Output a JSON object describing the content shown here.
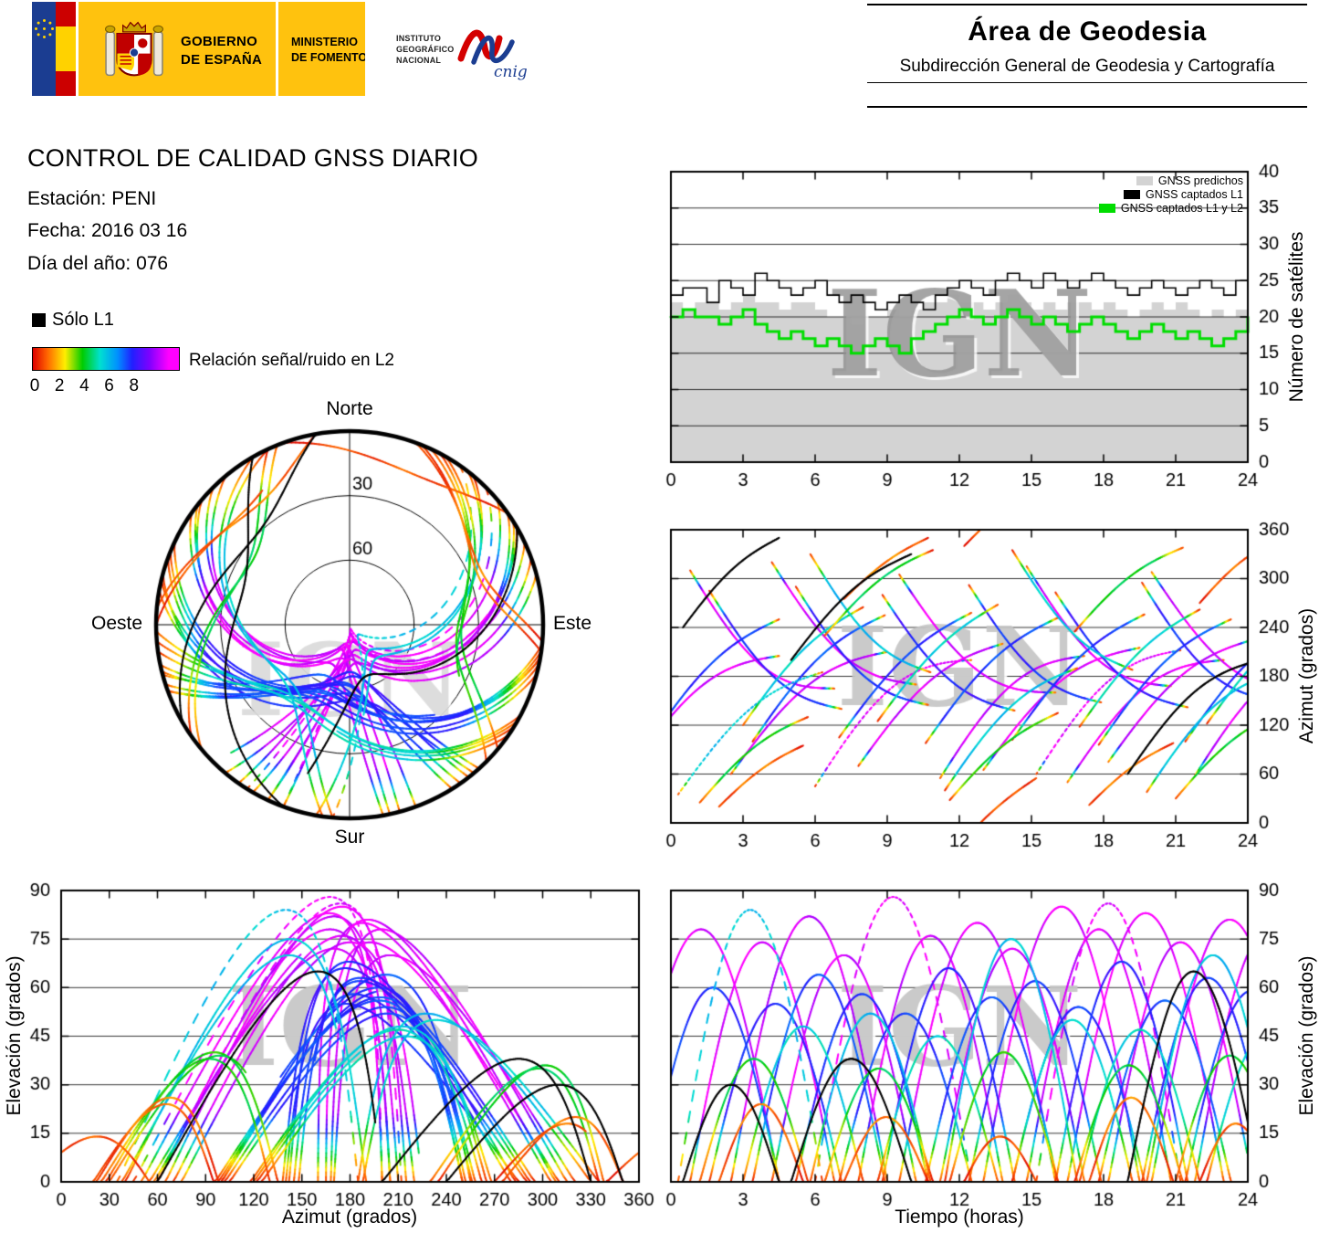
{
  "watermark": "IGN",
  "colors": {
    "eu_blue": "#1b3d91",
    "flag_red": "#cc0000",
    "flag_yellow": "#ffd200",
    "gov_yellow": "#ffc20e",
    "legend_green": "#00dd00",
    "legend_gray": "#d3d3d3"
  },
  "header": {
    "gobierno_line1": "GOBIERNO",
    "gobierno_line2": "DE ESPAÑA",
    "ministerio_line1": "MINISTERIO",
    "ministerio_line2": "DE FOMENTO",
    "ign_line1": "INSTITUTO",
    "ign_line2": "GEOGRÁFICO",
    "ign_line3": "NACIONAL",
    "cnig": "cnig",
    "area_title": "Área de Geodesia",
    "area_subtitle": "Subdirección General de Geodesia y Cartografía"
  },
  "info": {
    "title": "CONTROL DE CALIDAD GNSS DIARIO",
    "station_label": "Estación: PENI",
    "date_label": "Fecha: 2016 03 16",
    "doy_label": "Día del año: 076",
    "solo_l1": "Sólo L1",
    "colorbar_label": "Relación señal/ruido en L2",
    "colorbar_ticks": [
      0,
      2,
      4,
      6,
      8
    ]
  },
  "colorbar_stops": [
    {
      "p": 0.0,
      "c": "#dd0000"
    },
    {
      "p": 0.1,
      "c": "#ff6600"
    },
    {
      "p": 0.22,
      "c": "#ffee00"
    },
    {
      "p": 0.34,
      "c": "#00cc00"
    },
    {
      "p": 0.46,
      "c": "#00e0d0"
    },
    {
      "p": 0.58,
      "c": "#0090ff"
    },
    {
      "p": 0.68,
      "c": "#2020ff"
    },
    {
      "p": 0.8,
      "c": "#8000ff"
    },
    {
      "p": 0.93,
      "c": "#ff00ff"
    },
    {
      "p": 1.0,
      "c": "#ff00ff"
    }
  ],
  "skyplot": {
    "north": "Norte",
    "south": "Sur",
    "east": "Este",
    "west": "Oeste",
    "ring_labels": [
      "30",
      "60"
    ],
    "elevation_rings_deg": [
      30,
      60
    ]
  },
  "chart_data": [
    {
      "id": "satellite-count",
      "type": "line",
      "title": "",
      "xlabel": "",
      "ylabel": "Número de satélites",
      "xlim": [
        0,
        24
      ],
      "ylim": [
        0,
        40
      ],
      "xticks": [
        0,
        3,
        6,
        9,
        12,
        15,
        18,
        21,
        24
      ],
      "yticks": [
        0,
        5,
        10,
        15,
        20,
        25,
        30,
        35,
        40
      ],
      "x_step_hours": 0.5,
      "grid": "horizontal",
      "legend_position": "top-right",
      "series": [
        {
          "name": "GNSS predichos",
          "color": "#d3d3d3",
          "style": "area",
          "values": [
            22,
            21,
            22,
            22,
            21,
            22,
            23,
            22,
            22,
            21,
            22,
            22,
            21,
            20,
            20,
            19,
            20,
            20,
            21,
            20,
            21,
            22,
            22,
            23,
            22,
            22,
            21,
            22,
            23,
            22,
            21,
            22,
            21,
            22,
            22,
            21,
            22,
            21,
            20,
            21,
            22,
            21,
            22,
            21,
            20,
            21,
            20,
            21,
            21
          ]
        },
        {
          "name": "GNSS captados L1",
          "color": "#000000",
          "style": "step",
          "values": [
            23,
            24,
            24,
            22,
            25,
            24,
            23,
            26,
            25,
            24,
            23,
            24,
            25,
            23,
            22,
            23,
            22,
            21,
            22,
            23,
            22,
            21,
            23,
            24,
            25,
            24,
            23,
            25,
            26,
            25,
            24,
            26,
            25,
            24,
            25,
            26,
            25,
            24,
            23,
            24,
            25,
            24,
            23,
            24,
            25,
            24,
            23,
            25,
            24
          ]
        },
        {
          "name": "GNSS captados L1 y L2",
          "color": "#00dd00",
          "style": "step",
          "values": [
            20,
            21,
            20,
            20,
            19,
            20,
            21,
            19,
            18,
            17,
            18,
            17,
            16,
            17,
            16,
            15,
            16,
            17,
            16,
            15,
            17,
            18,
            19,
            20,
            21,
            20,
            19,
            20,
            21,
            20,
            19,
            20,
            19,
            18,
            19,
            20,
            19,
            18,
            17,
            18,
            19,
            18,
            17,
            18,
            17,
            16,
            17,
            18,
            20
          ]
        }
      ]
    },
    {
      "id": "azimuth-vs-time",
      "type": "line",
      "xlabel": "",
      "ylabel": "Azimut (grados)",
      "xlim": [
        0,
        24
      ],
      "ylim": [
        0,
        360
      ],
      "xticks": [
        0,
        3,
        6,
        9,
        12,
        15,
        18,
        21,
        24
      ],
      "yticks": [
        0,
        60,
        120,
        180,
        240,
        300,
        360
      ],
      "grid": "horizontal",
      "source": "satellite_passes",
      "x": "time",
      "y": "azimuth"
    },
    {
      "id": "elevation-vs-azimuth",
      "type": "line",
      "xlabel": "Azimut (grados)",
      "ylabel": "Elevación (grados)",
      "xlim": [
        0,
        360
      ],
      "ylim": [
        0,
        90
      ],
      "xticks": [
        0,
        30,
        60,
        90,
        120,
        150,
        180,
        210,
        240,
        270,
        300,
        330,
        360
      ],
      "yticks": [
        0,
        15,
        30,
        45,
        60,
        75,
        90
      ],
      "grid": "horizontal",
      "source": "satellite_passes",
      "x": "azimuth",
      "y": "elevation"
    },
    {
      "id": "elevation-vs-time",
      "type": "line",
      "xlabel": "Tiempo (horas)",
      "ylabel": "Elevación (grados)",
      "xlim": [
        0,
        24
      ],
      "ylim": [
        0,
        90
      ],
      "xticks": [
        0,
        3,
        6,
        9,
        12,
        15,
        18,
        21,
        24
      ],
      "yticks": [
        0,
        15,
        30,
        45,
        60,
        75,
        90
      ],
      "grid": "horizontal",
      "source": "satellite_passes",
      "x": "time",
      "y": "elevation"
    }
  ],
  "satellite_passes": {
    "format": [
      "t0_hours",
      "duration_hours",
      "azimuth_rise_deg",
      "azimuth_set_deg",
      "azimuth_bow_deg",
      "max_elevation_deg",
      "snr_bias_0_8",
      "style_0solid_1dotted_2black_L1only"
    ],
    "passes": [
      [
        -2,
        6.5,
        50,
        205,
        40,
        78,
        8.1,
        0
      ],
      [
        0.8,
        6,
        310,
        165,
        -45,
        74,
        8.2,
        0
      ],
      [
        2.5,
        6.5,
        60,
        210,
        35,
        82,
        7.9,
        0
      ],
      [
        4.2,
        6,
        320,
        170,
        -40,
        70,
        8,
        0
      ],
      [
        6,
        6.5,
        45,
        200,
        45,
        88,
        8.3,
        1
      ],
      [
        7.8,
        6,
        70,
        220,
        30,
        76,
        8,
        0
      ],
      [
        9.5,
        6.5,
        305,
        160,
        -45,
        80,
        8.1,
        0
      ],
      [
        11.2,
        6,
        55,
        205,
        40,
        72,
        7.9,
        0
      ],
      [
        13,
        6.5,
        65,
        215,
        35,
        85,
        8.2,
        0
      ],
      [
        14.8,
        6,
        315,
        168,
        -42,
        78,
        8,
        0
      ],
      [
        15.2,
        6,
        60,
        212,
        38,
        86,
        8.2,
        1
      ],
      [
        16.5,
        6.5,
        50,
        200,
        42,
        83,
        8.3,
        0
      ],
      [
        18.2,
        6,
        75,
        225,
        30,
        74,
        8,
        0
      ],
      [
        20,
        6.5,
        308,
        162,
        -44,
        81,
        8.1,
        0
      ],
      [
        21.8,
        6,
        58,
        208,
        40,
        77,
        8,
        0
      ],
      [
        -1,
        5.5,
        95,
        250,
        25,
        60,
        6,
        0
      ],
      [
        1.6,
        5.5,
        285,
        140,
        -35,
        55,
        6.2,
        0
      ],
      [
        3.4,
        5.5,
        100,
        255,
        25,
        64,
        5.8,
        0
      ],
      [
        5.2,
        5.5,
        290,
        145,
        -35,
        58,
        6.1,
        0
      ],
      [
        7,
        5.5,
        105,
        258,
        22,
        52,
        6,
        0
      ],
      [
        8.8,
        5.5,
        280,
        138,
        -32,
        66,
        6.3,
        0
      ],
      [
        10.6,
        5.5,
        98,
        252,
        24,
        57,
        5.9,
        0
      ],
      [
        12.4,
        5.5,
        292,
        148,
        -34,
        62,
        6.1,
        0
      ],
      [
        14.2,
        5.5,
        102,
        256,
        23,
        54,
        6,
        0
      ],
      [
        16,
        5.5,
        283,
        142,
        -33,
        68,
        6.2,
        0
      ],
      [
        17.8,
        5.5,
        96,
        250,
        25,
        56,
        5.8,
        0
      ],
      [
        19.6,
        5.5,
        295,
        150,
        -36,
        63,
        6.1,
        0
      ],
      [
        21.4,
        5.5,
        100,
        254,
        24,
        59,
        6,
        0
      ],
      [
        0.3,
        6,
        35,
        185,
        30,
        84,
        4.5,
        1
      ],
      [
        3,
        5,
        120,
        265,
        20,
        48,
        4.3,
        0
      ],
      [
        5.8,
        5,
        330,
        185,
        -30,
        52,
        4.6,
        0
      ],
      [
        8.6,
        5,
        125,
        268,
        18,
        45,
        4.2,
        0
      ],
      [
        11.4,
        5.5,
        40,
        190,
        28,
        75,
        4.5,
        0
      ],
      [
        14.2,
        5,
        335,
        188,
        -28,
        50,
        4.4,
        0
      ],
      [
        17,
        5,
        118,
        262,
        20,
        47,
        4.2,
        0
      ],
      [
        19.8,
        5.5,
        38,
        186,
        30,
        70,
        4.6,
        0
      ],
      [
        22.3,
        5,
        122,
        264,
        19,
        46,
        4.3,
        0
      ],
      [
        1.2,
        4.5,
        25,
        130,
        15,
        38,
        3.2,
        0
      ],
      [
        6.4,
        4.5,
        230,
        335,
        15,
        35,
        3.4,
        0
      ],
      [
        11.6,
        4.5,
        28,
        135,
        14,
        40,
        3.1,
        0
      ],
      [
        16.8,
        4.5,
        235,
        338,
        15,
        36,
        3.3,
        0
      ],
      [
        21,
        4.5,
        30,
        138,
        15,
        39,
        3.2,
        0
      ],
      [
        2,
        3.5,
        20,
        95,
        8,
        24,
        1,
        0
      ],
      [
        7.2,
        3.5,
        275,
        350,
        8,
        20,
        1.2,
        0
      ],
      [
        12.2,
        3,
        340,
        415,
        5,
        14,
        0.9,
        0
      ],
      [
        17.4,
        3.5,
        22,
        98,
        8,
        26,
        1.1,
        0
      ],
      [
        22,
        3,
        270,
        345,
        8,
        18,
        1,
        0
      ],
      [
        5,
        5,
        200,
        330,
        20,
        38,
        0,
        2
      ],
      [
        19,
        5.5,
        60,
        200,
        30,
        65,
        0,
        2
      ],
      [
        0.5,
        4,
        240,
        350,
        15,
        30,
        0,
        2
      ]
    ]
  }
}
